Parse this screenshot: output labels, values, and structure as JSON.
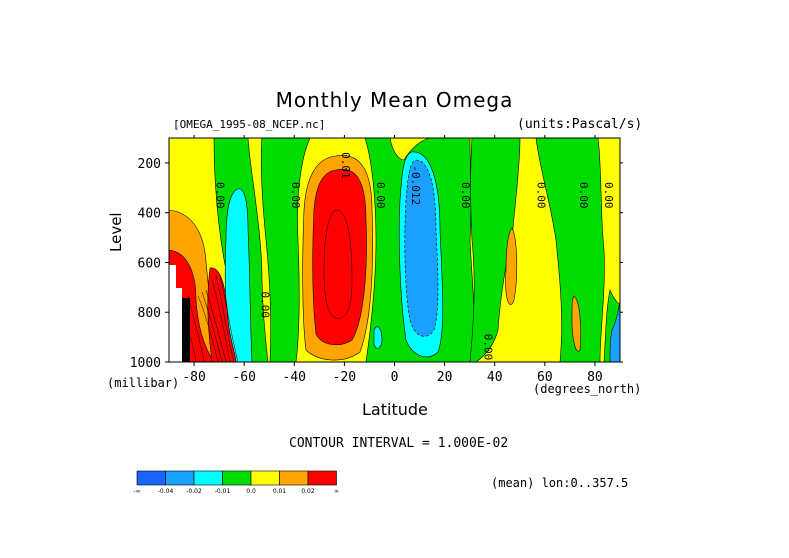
{
  "chart_data": {
    "type": "heatmap",
    "title": "Monthly Mean Omega",
    "subtitle_left": "[OMEGA_1995-08_NCEP.nc]",
    "subtitle_right": "(units:Pascal/s)",
    "xlabel": "Latitude",
    "xunit": "(degrees_north)",
    "ylabel": "Level",
    "yunit": "(millibar)",
    "xlim": [
      -90,
      90
    ],
    "ylim": [
      100,
      1000
    ],
    "y_inverted": true,
    "xticks": [
      -80,
      -60,
      -40,
      -20,
      0,
      20,
      40,
      60,
      80
    ],
    "yticks": [
      200,
      400,
      600,
      800,
      1000
    ],
    "contour_interval_text": "CONTOUR INTERVAL = 1.000E-02",
    "mean_text": "(mean) lon:0..357.5",
    "legend_labels": [
      "-∞",
      "-0.04",
      "-0.02",
      "-0.01",
      "0.0",
      "0.01",
      "0.02",
      "∞"
    ],
    "legend_colors": [
      "#1a64ff",
      "#1aa0ff",
      "#00ffff",
      "#00dc00",
      "#ffff00",
      "#ffa500",
      "#ff0000"
    ],
    "contour_labels": [
      {
        "text": "0.00",
        "lat": -71,
        "lev": 330
      },
      {
        "text": "0.00",
        "lat": -41,
        "lev": 330
      },
      {
        "text": "0.00",
        "lat": -7,
        "lev": 330
      },
      {
        "text": "-0.012",
        "lat": 7,
        "lev": 290
      },
      {
        "text": "0.00",
        "lat": 27,
        "lev": 330
      },
      {
        "text": "0.00",
        "lat": 57,
        "lev": 330
      },
      {
        "text": "0.00",
        "lat": 74,
        "lev": 330
      },
      {
        "text": "0.00",
        "lat": 84,
        "lev": 330
      },
      {
        "text": "0.01",
        "lat": -21,
        "lev": 210
      },
      {
        "text": "0.00",
        "lat": -53,
        "lev": 770
      },
      {
        "text": "0.00",
        "lat": 36,
        "lev": 940
      }
    ],
    "regions": [
      {
        "value_band": "0.0 to 0.01",
        "color": "#ffff00",
        "desc": "background"
      },
      {
        "value_band": "-0.01 to 0.0",
        "color": "#00dc00",
        "lat": [
          -58,
          -44
        ],
        "desc": "descending green band"
      },
      {
        "value_band": "-0.01 to 0.0",
        "color": "#00dc00",
        "lat": [
          -12,
          40
        ],
        "desc": "broad green around equator"
      },
      {
        "value_band": "-0.02 to -0.01",
        "color": "#00ffff",
        "lat": [
          -67,
          -59
        ],
        "lev": [
          330,
          1000
        ]
      },
      {
        "value_band": "-0.04 to -0.02",
        "color": "#1aa0ff",
        "lat": [
          0,
          18
        ],
        "lev": [
          170,
          900
        ]
      },
      {
        "value_band": "0.01 to 0.02",
        "color": "#ffa500",
        "lat": [
          -38,
          -8
        ],
        "lev": [
          200,
          1000
        ]
      },
      {
        "value_band": ">0.02",
        "color": "#ff0000",
        "lat": [
          -33,
          -13
        ],
        "lev": [
          260,
          930
        ]
      },
      {
        "value_band": ">0.02",
        "color": "#ff0000",
        "lat": [
          -90,
          -70
        ],
        "lev": [
          580,
          1000
        ]
      }
    ]
  }
}
